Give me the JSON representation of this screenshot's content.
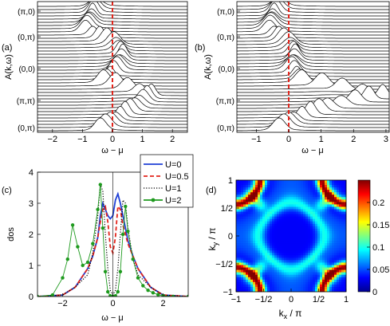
{
  "panels": [
    {
      "id": "a",
      "panel_label": "(a)",
      "chart_data": {
        "type": "line",
        "subtype": "waterfall-spectral-function",
        "ylabel": "A(k,ω)",
        "xlabel": "ω − μ",
        "xlim": [
          -2.5,
          2.5
        ],
        "x_ticks": [
          "−2",
          "−1",
          "0",
          "1",
          "2"
        ],
        "x_tick_values": [
          -2,
          -1,
          0,
          1,
          2
        ],
        "y_ticks": [
          "(π,0)",
          "(0,π)",
          "(0,0)",
          "(π,π)",
          "(0,π)"
        ],
        "trace_count": 40,
        "reference_line": {
          "x": 0,
          "style": "dashed",
          "color": "#e3241b"
        },
        "peak_path": [
          {
            "k": 0,
            "x": -0.55
          },
          {
            "k": 4,
            "x": -0.7
          },
          {
            "k": 8,
            "x": -0.9
          },
          {
            "k": 12,
            "x": 0.05
          },
          {
            "k": 16,
            "x": 0.35
          },
          {
            "k": 20,
            "x": 0.15
          },
          {
            "k": 24,
            "x": -0.3
          },
          {
            "k": 28,
            "x": 1.3
          },
          {
            "k": 32,
            "x": 0.75
          },
          {
            "k": 36,
            "x": 0.1
          },
          {
            "k": 39,
            "x": -0.4
          }
        ]
      }
    },
    {
      "id": "b",
      "panel_label": "(b)",
      "chart_data": {
        "type": "line",
        "subtype": "waterfall-spectral-function",
        "ylabel": "A(k,ω)",
        "xlabel": "ω − μ",
        "xlim": [
          -1.6,
          3.1
        ],
        "x_ticks": [
          "−1",
          "0",
          "1",
          "2",
          "3"
        ],
        "x_tick_values": [
          -1,
          0,
          1,
          2,
          3
        ],
        "y_ticks": [
          "(π,0)",
          "(0,π)",
          "(0,0)",
          "(π,π)",
          "(0,π)"
        ],
        "trace_count": 40,
        "reference_line": {
          "x": 0,
          "style": "dashed",
          "color": "#e3241b"
        },
        "peak_path": [
          {
            "k": 0,
            "x": -0.3
          },
          {
            "k": 4,
            "x": -0.5
          },
          {
            "k": 8,
            "x": -0.6
          },
          {
            "k": 12,
            "x": 0.0
          },
          {
            "k": 16,
            "x": 0.2
          },
          {
            "k": 20,
            "x": 0.1
          },
          {
            "k": 24,
            "x": 0.4
          },
          {
            "k": 28,
            "x": 2.9
          },
          {
            "k": 32,
            "x": 1.2
          },
          {
            "k": 36,
            "x": 0.15
          },
          {
            "k": 39,
            "x": -0.3
          }
        ]
      }
    },
    {
      "id": "c",
      "panel_label": "(c)",
      "chart_data": {
        "type": "line",
        "ylabel": "dos",
        "xlabel": "ω − μ",
        "xlim": [
          -3,
          3
        ],
        "ylim": [
          0,
          4
        ],
        "x_ticks": [
          "−2",
          "0",
          "2"
        ],
        "x_tick_values": [
          -2,
          0,
          2
        ],
        "y_ticks": [
          "0",
          "1",
          "2",
          "3",
          "4"
        ],
        "y_tick_values": [
          0,
          1,
          2,
          3,
          4
        ],
        "legend": "top-right",
        "series": [
          {
            "name": "U=0",
            "color": "#1f3fd6",
            "style": "solid",
            "x": [
              -3,
              -2,
              -1.5,
              -1,
              -0.8,
              -0.6,
              -0.5,
              -0.4,
              -0.3,
              -0.2,
              -0.1,
              0,
              0.1,
              0.2,
              0.3,
              0.4,
              0.5,
              0.6,
              0.8,
              1,
              1.5,
              2,
              3
            ],
            "y": [
              0,
              0.05,
              0.3,
              0.9,
              1.3,
              1.9,
              2.6,
              3.0,
              2.8,
              2.6,
              2.5,
              2.6,
              3.1,
              3.3,
              3.0,
              2.6,
              2.2,
              1.8,
              1.3,
              0.9,
              0.3,
              0.05,
              0
            ]
          },
          {
            "name": "U=0.5",
            "color": "#e3241b",
            "style": "dashed",
            "x": [
              -3,
              -2,
              -1.5,
              -1,
              -0.8,
              -0.6,
              -0.5,
              -0.4,
              -0.3,
              -0.2,
              -0.1,
              0,
              0.1,
              0.2,
              0.3,
              0.4,
              0.5,
              0.6,
              0.8,
              1,
              1.5,
              2,
              3
            ],
            "y": [
              0,
              0.05,
              0.3,
              0.9,
              1.3,
              1.9,
              2.4,
              2.8,
              2.9,
              2.4,
              1.6,
              1.4,
              1.9,
              2.9,
              2.8,
              2.3,
              2.0,
              1.7,
              1.3,
              0.9,
              0.3,
              0.05,
              0
            ]
          },
          {
            "name": "U=1",
            "color": "#000000",
            "style": "dotted",
            "x": [
              -3,
              -2,
              -1.5,
              -1,
              -0.8,
              -0.6,
              -0.5,
              -0.4,
              -0.3,
              -0.2,
              -0.1,
              0,
              0.1,
              0.2,
              0.3,
              0.4,
              0.5,
              0.6,
              0.8,
              1,
              1.5,
              2,
              3
            ],
            "y": [
              0,
              0.05,
              0.3,
              0.7,
              1.4,
              2.6,
              3.6,
              3.4,
              2.0,
              0.9,
              0.2,
              0.05,
              0.2,
              0.9,
              2.0,
              3.1,
              3.0,
              2.2,
              1.2,
              0.7,
              0.3,
              0.05,
              0
            ]
          },
          {
            "name": "U=2",
            "color": "#1e9a1e",
            "style": "solid-markers",
            "x": [
              -3,
              -2.4,
              -2,
              -1.8,
              -1.6,
              -1.4,
              -1.2,
              -1.0,
              -0.8,
              -0.6,
              -0.5,
              -0.4,
              -0.3,
              -0.2,
              -0.1,
              0,
              0.1,
              0.2,
              0.3,
              0.4,
              0.5,
              0.6,
              0.8,
              1.0,
              1.2,
              1.4,
              1.6,
              1.8,
              2.0,
              2.4,
              3
            ],
            "y": [
              0,
              0.05,
              0.6,
              1.2,
              2.3,
              1.6,
              1.0,
              1.1,
              1.7,
              2.8,
              3.6,
              2.2,
              0.8,
              0.15,
              0.02,
              0.0,
              0.02,
              0.15,
              0.8,
              2.0,
              2.9,
              2.1,
              1.2,
              0.6,
              0.35,
              0.2,
              0.12,
              0.06,
              0.02,
              0,
              0
            ]
          }
        ]
      }
    },
    {
      "id": "d",
      "panel_label": "(d)",
      "chart_data": {
        "type": "heatmap",
        "xlabel": "k_x / π",
        "ylabel": "k_y / π",
        "xlim": [
          -1,
          1
        ],
        "ylim": [
          -1,
          1
        ],
        "x_ticks": [
          "−1",
          "−1/2",
          "0",
          "1/2",
          "1"
        ],
        "x_tick_values": [
          -1,
          -0.5,
          0,
          0.5,
          1
        ],
        "y_ticks": [
          "−1",
          "−1/2",
          "0",
          "1/2",
          "1"
        ],
        "y_tick_values": [
          -1,
          -0.5,
          0,
          0.5,
          1
        ],
        "colorbar": {
          "ticks": [
            "0",
            "0.05",
            "0.1",
            "0.15",
            "0.2"
          ],
          "tick_values": [
            0,
            0.05,
            0.1,
            0.15,
            0.2
          ],
          "range": [
            0,
            0.25
          ]
        }
      }
    }
  ]
}
